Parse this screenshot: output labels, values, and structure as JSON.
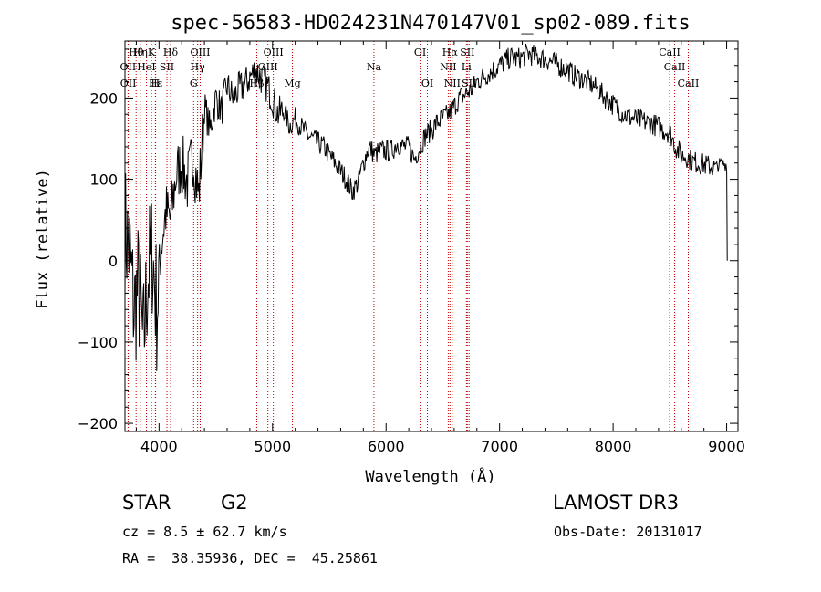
{
  "chart_data": {
    "type": "line",
    "title": "spec-56583-HD024231N470147V01_sp02-089.fits",
    "xlabel": "Wavelength (Å)",
    "ylabel": "Flux (relative)",
    "xlim": [
      3700,
      9100
    ],
    "ylim": [
      -210,
      270
    ],
    "xticks": [
      4000,
      5000,
      6000,
      7000,
      8000,
      9000
    ],
    "yticks": [
      -200,
      -100,
      0,
      100,
      200
    ],
    "ytick_labels": [
      "−200",
      "−100",
      "0",
      "100",
      "200"
    ],
    "series": [
      {
        "name": "flux",
        "x": [
          3700,
          3740,
          3780,
          3820,
          3860,
          3900,
          3940,
          3980,
          4020,
          4060,
          4100,
          4150,
          4200,
          4250,
          4300,
          4350,
          4400,
          4450,
          4500,
          4550,
          4600,
          4650,
          4700,
          4750,
          4800,
          4850,
          4900,
          4950,
          5000,
          5050,
          5100,
          5150,
          5200,
          5250,
          5300,
          5350,
          5400,
          5450,
          5500,
          5550,
          5600,
          5650,
          5700,
          5750,
          5800,
          5850,
          5900,
          5950,
          6000,
          6050,
          6100,
          6150,
          6200,
          6250,
          6300,
          6350,
          6400,
          6450,
          6500,
          6550,
          6600,
          6650,
          6700,
          6750,
          6800,
          6850,
          6900,
          6950,
          7000,
          7050,
          7100,
          7150,
          7200,
          7250,
          7300,
          7350,
          7400,
          7450,
          7500,
          7550,
          7600,
          7650,
          7700,
          7750,
          7800,
          7850,
          7900,
          7950,
          8000,
          8050,
          8100,
          8150,
          8200,
          8250,
          8300,
          8350,
          8400,
          8450,
          8500,
          8550,
          8600,
          8650,
          8700,
          8750,
          8800,
          8850,
          8900,
          8950,
          9000,
          9005
        ],
        "values": [
          40,
          10,
          -60,
          -30,
          -110,
          -20,
          10,
          -60,
          20,
          60,
          50,
          105,
          120,
          95,
          130,
          80,
          190,
          160,
          200,
          185,
          215,
          200,
          210,
          215,
          225,
          235,
          225,
          215,
          200,
          180,
          185,
          165,
          175,
          165,
          155,
          150,
          145,
          140,
          130,
          120,
          110,
          100,
          85,
          95,
          120,
          140,
          130,
          135,
          135,
          135,
          145,
          140,
          140,
          125,
          140,
          155,
          160,
          170,
          175,
          180,
          190,
          200,
          205,
          210,
          220,
          225,
          230,
          235,
          240,
          245,
          250,
          248,
          250,
          255,
          252,
          250,
          248,
          245,
          242,
          238,
          235,
          228,
          225,
          222,
          218,
          212,
          205,
          198,
          192,
          186,
          180,
          176,
          174,
          172,
          170,
          168,
          165,
          160,
          158,
          140,
          130,
          128,
          122,
          120,
          118,
          116,
          114,
          120,
          118,
          0
        ]
      }
    ],
    "line_markers": [
      {
        "label": "Hθ",
        "x": 3798,
        "row": 1
      },
      {
        "label": "OII",
        "x": 3727,
        "row": 2
      },
      {
        "label": "OII",
        "x": 3729,
        "row": 3
      },
      {
        "label": "Hη",
        "x": 3835,
        "row": 1
      },
      {
        "label": "HeI",
        "x": 3889,
        "row": 2
      },
      {
        "label": "Hε",
        "x": 3970,
        "row": 3
      },
      {
        "label": "K",
        "x": 3934,
        "row": 1
      },
      {
        "label": "SII",
        "x": 4070,
        "row": 2
      },
      {
        "label": "H",
        "x": 3968,
        "row": 3
      },
      {
        "label": "Hδ",
        "x": 4102,
        "row": 1
      },
      {
        "label": "OIII",
        "x": 4363,
        "row": 1
      },
      {
        "label": "Hγ",
        "x": 4340,
        "row": 2
      },
      {
        "label": "G",
        "x": 4305,
        "row": 3
      },
      {
        "label": "OIII",
        "x": 5007,
        "row": 1
      },
      {
        "label": "OIII",
        "x": 4959,
        "row": 2
      },
      {
        "label": "Hβ",
        "x": 4861,
        "row": 3
      },
      {
        "label": "Mg",
        "x": 5175,
        "row": 3
      },
      {
        "label": "Na",
        "x": 5893,
        "row": 2
      },
      {
        "label": "OI",
        "x": 6300,
        "row": 1
      },
      {
        "label": "OI",
        "x": 6364,
        "row": 3
      },
      {
        "label": "Hα",
        "x": 6563,
        "row": 1
      },
      {
        "label": "SII",
        "x": 6716,
        "row": 1
      },
      {
        "label": "NII",
        "x": 6548,
        "row": 2
      },
      {
        "label": "Li",
        "x": 6708,
        "row": 2
      },
      {
        "label": "NII",
        "x": 6583,
        "row": 3
      },
      {
        "label": "SII",
        "x": 6731,
        "row": 3
      },
      {
        "label": "CaII",
        "x": 8498,
        "row": 1
      },
      {
        "label": "CaII",
        "x": 8542,
        "row": 2
      },
      {
        "label": "CaII",
        "x": 8662,
        "row": 3
      }
    ]
  },
  "info": {
    "object_class": "STAR",
    "subclass": "G2",
    "survey": "LAMOST DR3",
    "redshift_text": "cz = 8.5 ± 62.7 km/s",
    "obs_date": "Obs-Date: 20131017",
    "coords": "RA =  38.35936, DEC =  45.25861"
  },
  "colors": {
    "line": "#000000",
    "marker": "#c00000"
  }
}
